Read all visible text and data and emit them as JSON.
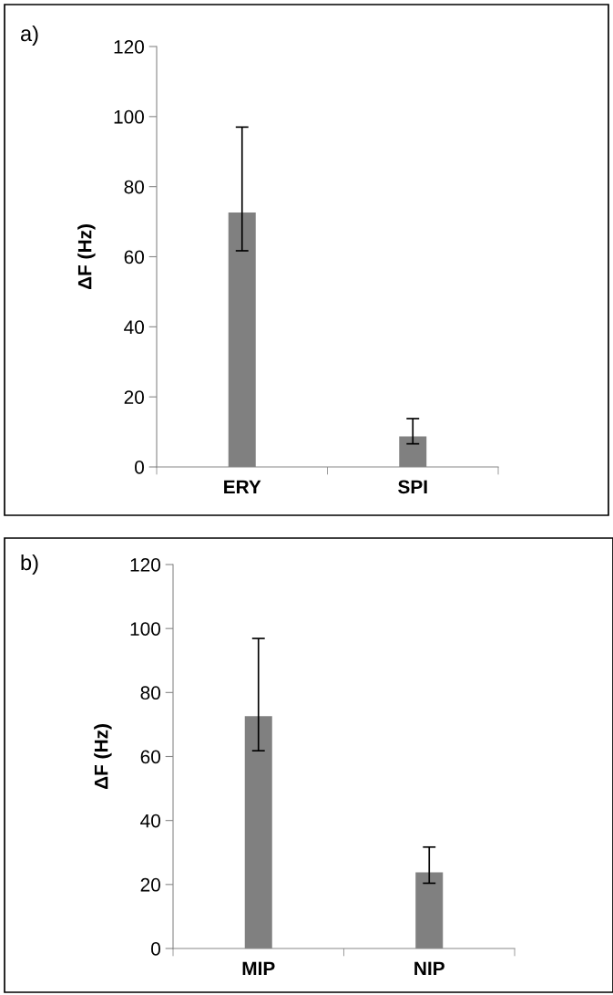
{
  "chart_data": [
    {
      "type": "bar",
      "title": "a)",
      "ylabel": "ΔF (Hz)",
      "categories": [
        "ERY",
        "SPI"
      ],
      "values": [
        72.6,
        8.7
      ],
      "errors": [
        [
          61.7,
          97.0
        ],
        [
          6.6,
          13.8
        ]
      ],
      "color": "#808080",
      "ylim": [
        0,
        120
      ],
      "yticks": [
        0,
        20,
        40,
        60,
        80,
        100,
        120
      ],
      "grid": false,
      "legend": false
    },
    {
      "type": "bar",
      "title": "b)",
      "ylabel": "ΔF (Hz)",
      "categories": [
        "MIP",
        "NIP"
      ],
      "values": [
        72.6,
        23.8
      ],
      "errors": [
        [
          61.8,
          96.9
        ],
        [
          20.4,
          31.7
        ]
      ],
      "color": "#808080",
      "ylim": [
        0,
        120
      ],
      "yticks": [
        0,
        20,
        40,
        60,
        80,
        100,
        120
      ],
      "grid": false,
      "legend": false
    }
  ]
}
